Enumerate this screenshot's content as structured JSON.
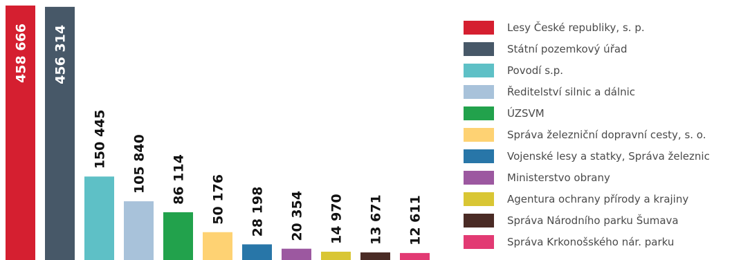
{
  "chart_data": {
    "type": "bar",
    "title": "",
    "xlabel": "",
    "ylabel": "",
    "ylim": [
      0,
      458666
    ],
    "grid": false,
    "legend_placement": "right",
    "categories": [
      "Lesy České republiky, s. p.",
      "Státní pozemkový úřad",
      "Povodí s.p.",
      "Ředitelství silnic a dálnic",
      "ÚZSVM",
      "Správa železniční dopravní cesty, s. o.",
      "Vojenské lesy a statky, Správa železnic",
      "Ministerstvo obrany",
      "Agentura ochrany přírody a krajiny",
      "Správa Národního parku Šumava",
      "Správa Krkonošského nár. parku"
    ],
    "values": [
      458666,
      456314,
      150445,
      105840,
      86114,
      50176,
      28198,
      20354,
      14970,
      13671,
      12611
    ],
    "value_labels": [
      "458 666",
      "456 314",
      "150 445",
      "105 840",
      "86 114",
      "50 176",
      "28 198",
      "20 354",
      "14 970",
      "13 671",
      "12 611"
    ],
    "colors": [
      "#d51f30",
      "#475868",
      "#5ec0c6",
      "#a8c2da",
      "#22a24c",
      "#fed273",
      "#2876a8",
      "#9c58a0",
      "#d9c634",
      "#4a2b25",
      "#e23a73"
    ],
    "label_colors": [
      "#ffffff",
      "#ffffff",
      "#111111",
      "#111111",
      "#111111",
      "#111111",
      "#111111",
      "#111111",
      "#111111",
      "#111111",
      "#111111"
    ]
  }
}
